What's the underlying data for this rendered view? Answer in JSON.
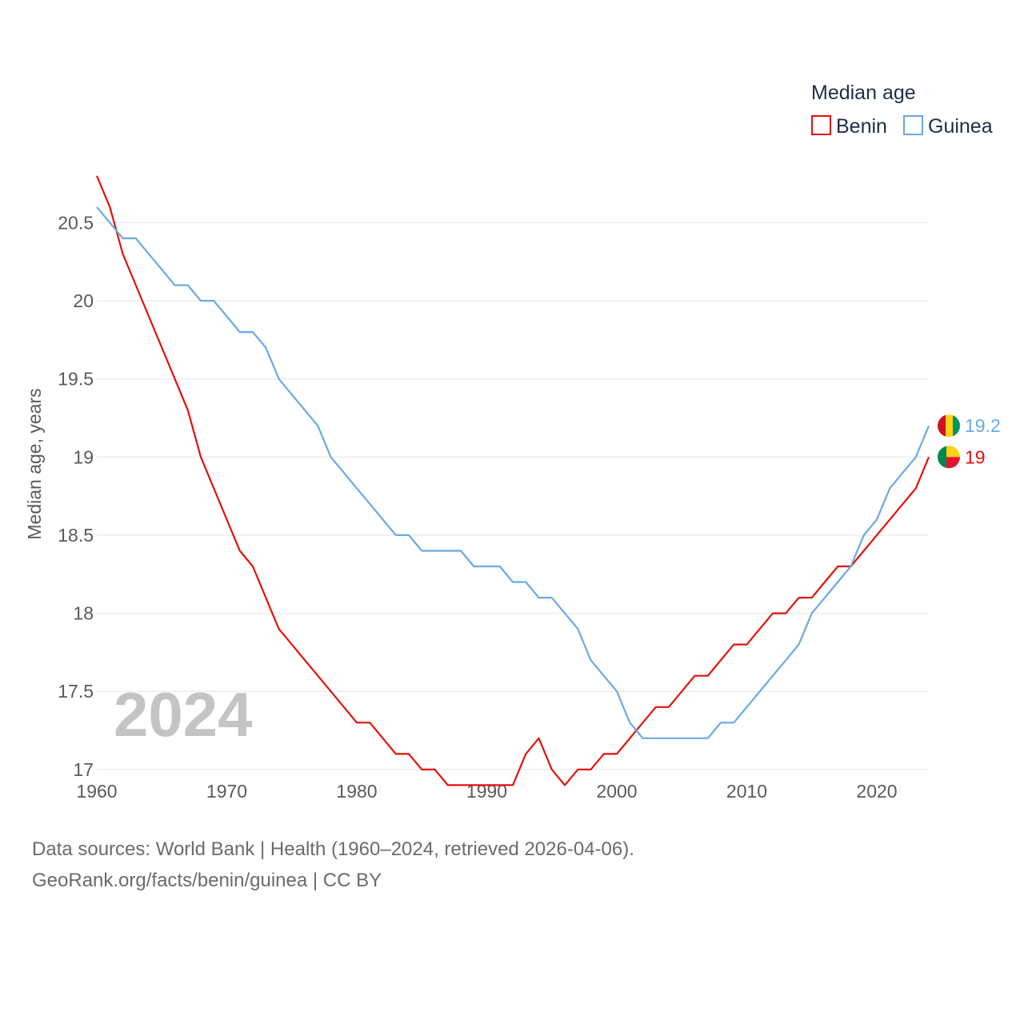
{
  "chart_data": {
    "type": "line",
    "legend_title": "Median age",
    "ylabel": "Median age, years",
    "xlabel": "",
    "xlim": [
      1960,
      2024
    ],
    "ylim": [
      16.6,
      20.85
    ],
    "x_ticks": [
      1960,
      1970,
      1980,
      1990,
      2000,
      2010,
      2020
    ],
    "y_ticks": [
      17,
      17.5,
      18,
      18.5,
      19,
      19.5,
      20,
      20.5
    ],
    "year_label": "2024",
    "x": [
      1960,
      1961,
      1962,
      1963,
      1964,
      1965,
      1966,
      1967,
      1968,
      1969,
      1970,
      1971,
      1972,
      1973,
      1974,
      1975,
      1976,
      1977,
      1978,
      1979,
      1980,
      1981,
      1982,
      1983,
      1984,
      1985,
      1986,
      1987,
      1988,
      1989,
      1990,
      1991,
      1992,
      1993,
      1994,
      1995,
      1996,
      1997,
      1998,
      1999,
      2000,
      2001,
      2002,
      2003,
      2004,
      2005,
      2006,
      2007,
      2008,
      2009,
      2010,
      2011,
      2012,
      2013,
      2014,
      2015,
      2016,
      2017,
      2018,
      2019,
      2020,
      2021,
      2022,
      2023,
      2024
    ],
    "series": [
      {
        "name": "Benin",
        "color": "#e3120b",
        "end_label": "19",
        "values": [
          20.8,
          20.6,
          20.3,
          20.1,
          19.9,
          19.7,
          19.5,
          19.3,
          19.0,
          18.8,
          18.6,
          18.4,
          18.3,
          18.1,
          17.9,
          17.8,
          17.7,
          17.6,
          17.5,
          17.4,
          17.3,
          17.3,
          17.2,
          17.1,
          17.1,
          17.0,
          17.0,
          16.9,
          16.9,
          16.9,
          16.9,
          16.9,
          16.9,
          17.1,
          17.2,
          17.0,
          16.9,
          17.0,
          17.0,
          17.1,
          17.1,
          17.2,
          17.3,
          17.4,
          17.4,
          17.5,
          17.6,
          17.6,
          17.7,
          17.8,
          17.8,
          17.9,
          18.0,
          18.0,
          18.1,
          18.1,
          18.2,
          18.3,
          18.3,
          18.4,
          18.5,
          18.6,
          18.7,
          18.8,
          19.0
        ]
      },
      {
        "name": "Guinea",
        "color": "#6aaae4",
        "end_label": "19.2",
        "values": [
          20.6,
          20.5,
          20.4,
          20.4,
          20.3,
          20.2,
          20.1,
          20.1,
          20.0,
          20.0,
          19.9,
          19.8,
          19.8,
          19.7,
          19.5,
          19.4,
          19.3,
          19.2,
          19.0,
          18.9,
          18.8,
          18.7,
          18.6,
          18.5,
          18.5,
          18.4,
          18.4,
          18.4,
          18.4,
          18.3,
          18.3,
          18.3,
          18.2,
          18.2,
          18.1,
          18.1,
          18.0,
          17.9,
          17.7,
          17.6,
          17.5,
          17.3,
          17.2,
          17.2,
          17.2,
          17.2,
          17.2,
          17.2,
          17.3,
          17.3,
          17.4,
          17.5,
          17.6,
          17.7,
          17.8,
          18.0,
          18.1,
          18.2,
          18.3,
          18.5,
          18.6,
          18.8,
          18.9,
          19.0,
          19.2
        ]
      }
    ],
    "source_line1": "Data sources: World Bank | Health (1960–2024, retrieved 2026-04-06).",
    "source_line2": "GeoRank.org/facts/benin/guinea | CC BY"
  },
  "colors": {
    "grid": "#e6e6e6",
    "tick_text": "#5a5a5a",
    "year_watermark": "#c4c4c4",
    "benin_flag": [
      "#008751",
      "#fcd116",
      "#e8112d"
    ],
    "guinea_flag": [
      "#ce1126",
      "#fcd116",
      "#009460"
    ]
  }
}
